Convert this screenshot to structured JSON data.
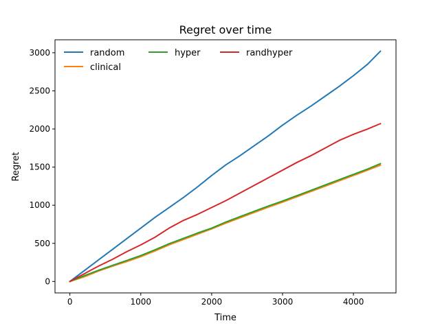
{
  "chart_data": {
    "type": "line",
    "title": "Regret over time",
    "xlabel": "Time",
    "ylabel": "Regret",
    "xlim": [
      -210,
      4600
    ],
    "ylim": [
      -150,
      3170
    ],
    "x_ticks": [
      0,
      1000,
      2000,
      3000,
      4000
    ],
    "y_ticks": [
      0,
      500,
      1000,
      1500,
      2000,
      2500,
      3000
    ],
    "x_tick_labels": [
      "0",
      "1000",
      "2000",
      "3000",
      "4000"
    ],
    "y_tick_labels": [
      "0",
      "500",
      "1000",
      "1500",
      "2000",
      "2500",
      "3000"
    ],
    "grid": false,
    "legend_position": "top-left",
    "legend_columns": 3,
    "series": [
      {
        "name": "random",
        "color": "#1f77b4",
        "x": [
          0,
          200,
          400,
          600,
          800,
          1000,
          1200,
          1400,
          1600,
          1800,
          2000,
          2200,
          2400,
          2600,
          2800,
          3000,
          3200,
          3400,
          3600,
          3800,
          4000,
          4200,
          4380
        ],
        "y": [
          0,
          140,
          280,
          420,
          560,
          700,
          840,
          970,
          1100,
          1240,
          1390,
          1530,
          1650,
          1780,
          1910,
          2050,
          2180,
          2300,
          2430,
          2560,
          2700,
          2850,
          3020
        ]
      },
      {
        "name": "clinical",
        "color": "#ff7f0e",
        "x": [
          0,
          200,
          400,
          600,
          800,
          1000,
          1200,
          1400,
          1600,
          1800,
          2000,
          2200,
          2400,
          2600,
          2800,
          3000,
          3200,
          3400,
          3600,
          3800,
          4000,
          4200,
          4380
        ],
        "y": [
          0,
          60,
          135,
          200,
          260,
          325,
          400,
          480,
          550,
          620,
          690,
          765,
          835,
          905,
          975,
          1040,
          1110,
          1180,
          1250,
          1320,
          1390,
          1460,
          1525
        ]
      },
      {
        "name": "hyper",
        "color": "#2ca02c",
        "x": [
          0,
          200,
          400,
          600,
          800,
          1000,
          1200,
          1400,
          1600,
          1800,
          2000,
          2200,
          2400,
          2600,
          2800,
          3000,
          3200,
          3400,
          3600,
          3800,
          4000,
          4200,
          4380
        ],
        "y": [
          0,
          75,
          145,
          210,
          275,
          340,
          415,
          495,
          565,
          635,
          700,
          780,
          850,
          920,
          990,
          1055,
          1125,
          1195,
          1265,
          1335,
          1405,
          1475,
          1545
        ]
      },
      {
        "name": "randhyper",
        "color": "#d62728",
        "x": [
          0,
          200,
          400,
          600,
          800,
          1000,
          1200,
          1400,
          1600,
          1800,
          2000,
          2200,
          2400,
          2600,
          2800,
          3000,
          3200,
          3400,
          3600,
          3800,
          4000,
          4200,
          4380
        ],
        "y": [
          0,
          100,
          200,
          290,
          390,
          480,
          580,
          700,
          800,
          880,
          970,
          1060,
          1160,
          1260,
          1360,
          1460,
          1560,
          1650,
          1750,
          1850,
          1930,
          2000,
          2070
        ]
      }
    ]
  }
}
